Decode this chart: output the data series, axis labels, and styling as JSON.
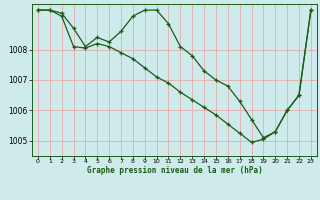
{
  "title": "Graphe pression niveau de la mer (hPa)",
  "background_color": "#ceeaea",
  "plot_bg_color": "#ceeaea",
  "grid_color_major": "#e8a0a0",
  "grid_color_minor": "#ddc8c8",
  "line_color": "#1a5c1a",
  "marker_color": "#1a5c1a",
  "xlim": [
    -0.5,
    23.5
  ],
  "ylim": [
    1004.5,
    1009.5
  ],
  "yticks": [
    1005,
    1006,
    1007,
    1008
  ],
  "xticks": [
    0,
    1,
    2,
    3,
    4,
    5,
    6,
    7,
    8,
    9,
    10,
    11,
    12,
    13,
    14,
    15,
    16,
    17,
    18,
    19,
    20,
    21,
    22,
    23
  ],
  "series1_x": [
    0,
    1,
    2,
    3,
    4,
    5,
    6,
    7,
    8,
    9,
    10,
    11,
    12,
    13,
    14,
    15,
    16,
    17,
    18,
    19,
    20,
    21,
    22,
    23
  ],
  "series1_y": [
    1009.3,
    1009.3,
    1009.2,
    1008.7,
    1008.1,
    1008.4,
    1008.25,
    1008.6,
    1009.1,
    1009.3,
    1009.3,
    1008.85,
    1008.1,
    1007.8,
    1007.3,
    1007.0,
    1006.8,
    1006.3,
    1005.7,
    1005.1,
    1005.3,
    1006.0,
    1006.5,
    1009.3
  ],
  "series2_x": [
    0,
    1,
    2,
    3,
    4,
    5,
    6,
    7,
    8,
    9,
    10,
    11,
    12,
    13,
    14,
    15,
    16,
    17,
    18,
    19,
    20,
    21,
    22,
    23
  ],
  "series2_y": [
    1009.3,
    1009.3,
    1009.1,
    1008.1,
    1008.05,
    1008.2,
    1008.1,
    1007.9,
    1007.7,
    1007.4,
    1007.1,
    1006.9,
    1006.6,
    1006.35,
    1006.1,
    1005.85,
    1005.55,
    1005.25,
    1004.95,
    1005.05,
    1005.3,
    1006.0,
    1006.5,
    1009.3
  ]
}
